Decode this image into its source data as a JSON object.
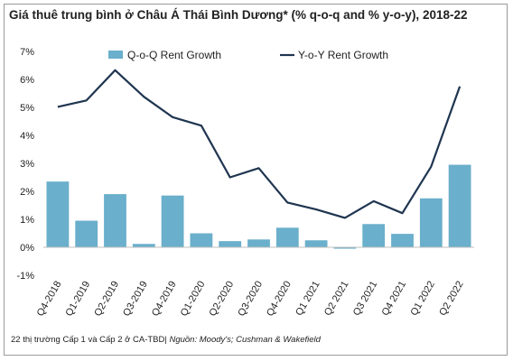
{
  "title": "Giá thuê trung bình ở Châu Á Thái Bình Dương* (% q-o-q and % y-o-y), 2018-22",
  "footnote": {
    "note": "22 thị trường Cấp 1 và Cấp 2 ở CA-TBD|",
    "source": " Nguồn: Moody's; Cushman & Wakefield"
  },
  "chart_data": {
    "type": "bar",
    "categories": [
      "Q4-2018",
      "Q1-2019",
      "Q2-2019",
      "Q3-2019",
      "Q4-2019",
      "Q1-2020",
      "Q2-2020",
      "Q3-2020",
      "Q4-2020",
      "Q1 2021",
      "Q2 2021",
      "Q3 2021",
      "Q4 2021",
      "Q1 2022",
      "Q2 2022"
    ],
    "series": [
      {
        "name": "Q-o-Q Rent Growth",
        "kind": "bar",
        "color": "#6aafcb",
        "values": [
          2.35,
          0.95,
          1.9,
          0.12,
          1.85,
          0.5,
          0.22,
          0.28,
          0.7,
          0.25,
          -0.05,
          0.83,
          0.48,
          1.75,
          2.95
        ]
      },
      {
        "name": "Y-o-Y Rent Growth",
        "kind": "line",
        "color": "#1f3550",
        "values": [
          5.02,
          5.25,
          6.33,
          5.38,
          4.65,
          4.35,
          2.5,
          2.83,
          1.6,
          1.35,
          1.05,
          1.65,
          1.22,
          2.88,
          5.75
        ]
      }
    ],
    "ylim": [
      -1,
      7
    ],
    "yticks": [
      "-1%",
      "0%",
      "1%",
      "2%",
      "3%",
      "4%",
      "5%",
      "6%",
      "7%"
    ],
    "grid": false,
    "legend": "top"
  }
}
